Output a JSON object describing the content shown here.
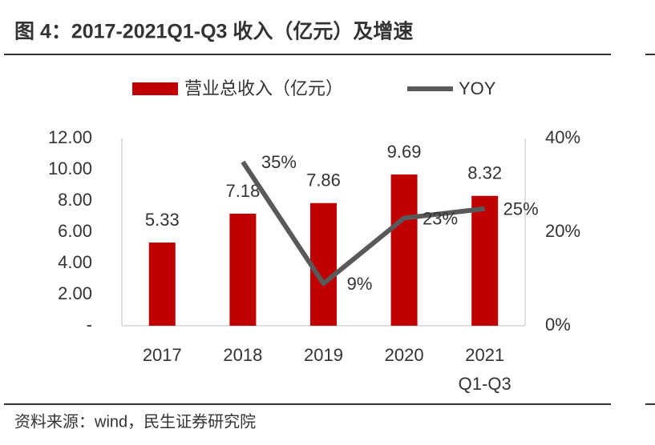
{
  "chart_data": {
    "type": "bar",
    "title": "图 4：2017-2021Q1-Q3 收入（亿元）及增速",
    "source": "资料来源：wind，民生证券研究院",
    "categories": [
      "2017",
      "2018",
      "2019",
      "2020",
      "2021 Q1-Q3"
    ],
    "series": [
      {
        "name": "营业总收入（亿元）",
        "color": "#c00000",
        "values": [
          5.33,
          7.18,
          7.86,
          9.69,
          8.32
        ]
      },
      {
        "name": "YOY",
        "type": "line",
        "axis": "y2",
        "color": "#595959",
        "values": [
          null,
          35,
          9,
          23,
          25
        ],
        "value_labels": [
          null,
          "35%",
          "9%",
          "23%",
          "25%"
        ]
      }
    ],
    "ylim": [
      0,
      12
    ],
    "yticks": [
      {
        "value": 0,
        "label": "-"
      },
      {
        "value": 2,
        "label": "2.00"
      },
      {
        "value": 4,
        "label": "4.00"
      },
      {
        "value": 6,
        "label": "6.00"
      },
      {
        "value": 8,
        "label": "8.00"
      },
      {
        "value": 10,
        "label": "10.00"
      },
      {
        "value": 12,
        "label": "12.00"
      }
    ],
    "y2lim": [
      0,
      40
    ],
    "y2ticks": [
      {
        "value": 0,
        "label": "0%"
      },
      {
        "value": 20,
        "label": "20%"
      },
      {
        "value": 40,
        "label": "40%"
      }
    ],
    "grid": false
  }
}
